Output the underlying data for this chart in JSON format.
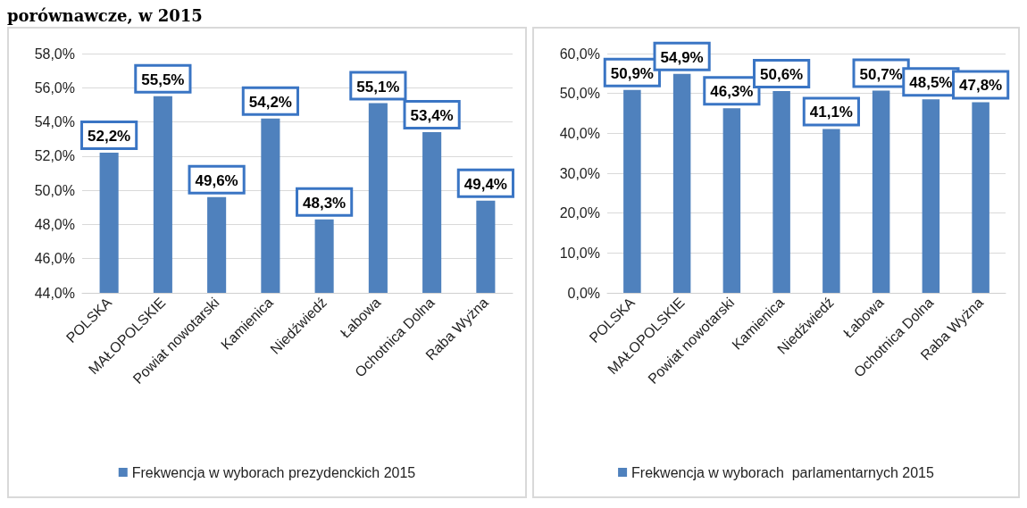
{
  "chart_data": [
    {
      "type": "bar",
      "title": "porównawcze, w 2015",
      "categories": [
        "POLSKA",
        "MAŁOPOLSKIE",
        "Powiat nowotarski",
        "Kamienica",
        "Niedźwiedź",
        "Łabowa",
        "Ochotnica Dolna",
        "Raba Wyżna"
      ],
      "series": [
        {
          "name": "Frekwencja w wyborach prezydenckich 2015",
          "color": "#4f81bd",
          "values": [
            52.2,
            55.5,
            49.6,
            54.2,
            48.3,
            55.1,
            53.4,
            49.4
          ]
        }
      ],
      "ylim": [
        44,
        58
      ],
      "yticks": [
        {
          "value": 44,
          "label": "44,0%"
        },
        {
          "value": 46,
          "label": "46,0%"
        },
        {
          "value": 48,
          "label": "48,0%"
        },
        {
          "value": 50,
          "label": "50,0%"
        },
        {
          "value": 52,
          "label": "52,0%"
        },
        {
          "value": 54,
          "label": "54,0%"
        },
        {
          "value": 56,
          "label": "56,0%"
        },
        {
          "value": 58,
          "label": "58,0%"
        }
      ],
      "value_labels": [
        "52,2%",
        "55,5%",
        "49,6%",
        "54,2%",
        "48,3%",
        "55,1%",
        "53,4%",
        "49,4%"
      ],
      "grid": "y",
      "legend": "bottom"
    },
    {
      "type": "bar",
      "categories": [
        "POLSKA",
        "MAŁOPOLSKIE",
        "Powiat nowotarski",
        "Kamienica",
        "Niedźwiedź",
        "Łabowa",
        "Ochotnica Dolna",
        "Raba Wyżna"
      ],
      "series": [
        {
          "name": "Frekwencja w wyborach  parlamentarnych 2015",
          "color": "#4f81bd",
          "values": [
            50.9,
            54.9,
            46.3,
            50.6,
            41.1,
            50.7,
            48.5,
            47.8
          ]
        }
      ],
      "ylim": [
        0,
        60
      ],
      "yticks": [
        {
          "value": 0,
          "label": "0,0%"
        },
        {
          "value": 10,
          "label": "10,0%"
        },
        {
          "value": 20,
          "label": "20,0%"
        },
        {
          "value": 30,
          "label": "30,0%"
        },
        {
          "value": 40,
          "label": "40,0%"
        },
        {
          "value": 50,
          "label": "50,0%"
        },
        {
          "value": 60,
          "label": "60,0%"
        }
      ],
      "value_labels": [
        "50,9%",
        "54,9%",
        "46,3%",
        "50,6%",
        "41,1%",
        "50,7%",
        "48,5%",
        "47,8%"
      ],
      "grid": "y",
      "legend": "bottom"
    }
  ]
}
